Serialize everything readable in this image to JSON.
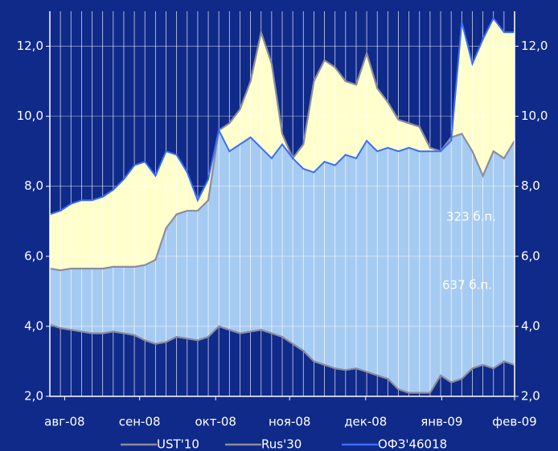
{
  "chart_data": {
    "type": "line",
    "x": [
      0,
      1,
      2,
      3,
      4,
      5,
      6,
      7,
      8,
      9,
      10,
      11,
      12,
      13,
      14,
      15,
      16,
      17,
      18,
      19,
      20,
      21,
      22,
      23,
      24,
      25,
      26,
      27,
      28,
      29,
      30,
      31,
      32,
      33,
      34,
      35,
      36,
      37,
      38,
      39,
      40,
      41,
      42,
      43,
      44
    ],
    "xlim": [
      0,
      44
    ],
    "xticks": [
      {
        "value": 1.4,
        "label": "авг-08"
      },
      {
        "value": 8.5,
        "label": "сен-08"
      },
      {
        "value": 15.7,
        "label": "окт-08"
      },
      {
        "value": 22.7,
        "label": "ноя-08"
      },
      {
        "value": 29.9,
        "label": "дек-08"
      },
      {
        "value": 37.1,
        "label": "янв-09"
      },
      {
        "value": 44,
        "label": "фев-09"
      }
    ],
    "ylim": [
      2,
      13
    ],
    "yticks": [
      {
        "value": 2,
        "label": "2,0"
      },
      {
        "value": 4,
        "label": "4,0"
      },
      {
        "value": 6,
        "label": "6,0"
      },
      {
        "value": 8,
        "label": "8,0"
      },
      {
        "value": 10,
        "label": "10,0"
      },
      {
        "value": 12,
        "label": "12,0"
      }
    ],
    "y2lim": [
      2,
      13
    ],
    "y2ticks": [
      {
        "value": 2,
        "label": "2,0"
      },
      {
        "value": 4,
        "label": "4,0"
      },
      {
        "value": 6,
        "label": "6,0"
      },
      {
        "value": 8,
        "label": "8,0"
      },
      {
        "value": 10,
        "label": "10,0"
      },
      {
        "value": 12,
        "label": "12,0"
      }
    ],
    "grid": true,
    "series": [
      {
        "name": "UST'10",
        "color": "#8c8c9c",
        "values": [
          4.05,
          3.95,
          3.9,
          3.85,
          3.8,
          3.8,
          3.85,
          3.8,
          3.75,
          3.6,
          3.5,
          3.55,
          3.7,
          3.65,
          3.6,
          3.7,
          4.0,
          3.9,
          3.8,
          3.85,
          3.9,
          3.8,
          3.7,
          3.5,
          3.3,
          3.0,
          2.9,
          2.8,
          2.75,
          2.8,
          2.7,
          2.6,
          2.5,
          2.2,
          2.1,
          2.1,
          2.1,
          2.6,
          2.4,
          2.5,
          2.8,
          2.9,
          2.8,
          3.0,
          2.9
        ]
      },
      {
        "name": "Rus'30",
        "color": "#8c8c9c",
        "values": [
          5.65,
          5.6,
          5.65,
          5.65,
          5.65,
          5.65,
          5.7,
          5.7,
          5.7,
          5.75,
          5.9,
          6.8,
          7.2,
          7.3,
          7.3,
          7.6,
          9.6,
          9.8,
          10.2,
          11.0,
          12.4,
          11.5,
          9.5,
          8.8,
          9.2,
          11.0,
          11.6,
          11.4,
          11.0,
          10.9,
          11.8,
          10.8,
          10.4,
          9.9,
          9.8,
          9.7,
          9.1,
          9.0,
          9.4,
          9.5,
          9.0,
          8.3,
          9.0,
          8.8,
          9.3
        ]
      },
      {
        "name": "ОФЗ'46018",
        "color": "#3a6cff",
        "values": [
          7.2,
          7.3,
          7.5,
          7.6,
          7.6,
          7.7,
          7.9,
          8.2,
          8.6,
          8.7,
          8.3,
          9.0,
          8.9,
          8.4,
          7.6,
          8.2,
          9.6,
          9.0,
          9.2,
          9.4,
          9.1,
          8.8,
          9.2,
          8.8,
          8.5,
          8.4,
          8.7,
          8.6,
          8.9,
          8.8,
          9.3,
          9.0,
          9.1,
          9.0,
          9.1,
          9.0,
          9.0,
          9.0,
          9.3,
          12.7,
          11.5,
          12.2,
          12.8,
          12.4,
          12.4
        ]
      }
    ],
    "annotations": [
      "323  б.п.",
      "637  б.п."
    ]
  }
}
